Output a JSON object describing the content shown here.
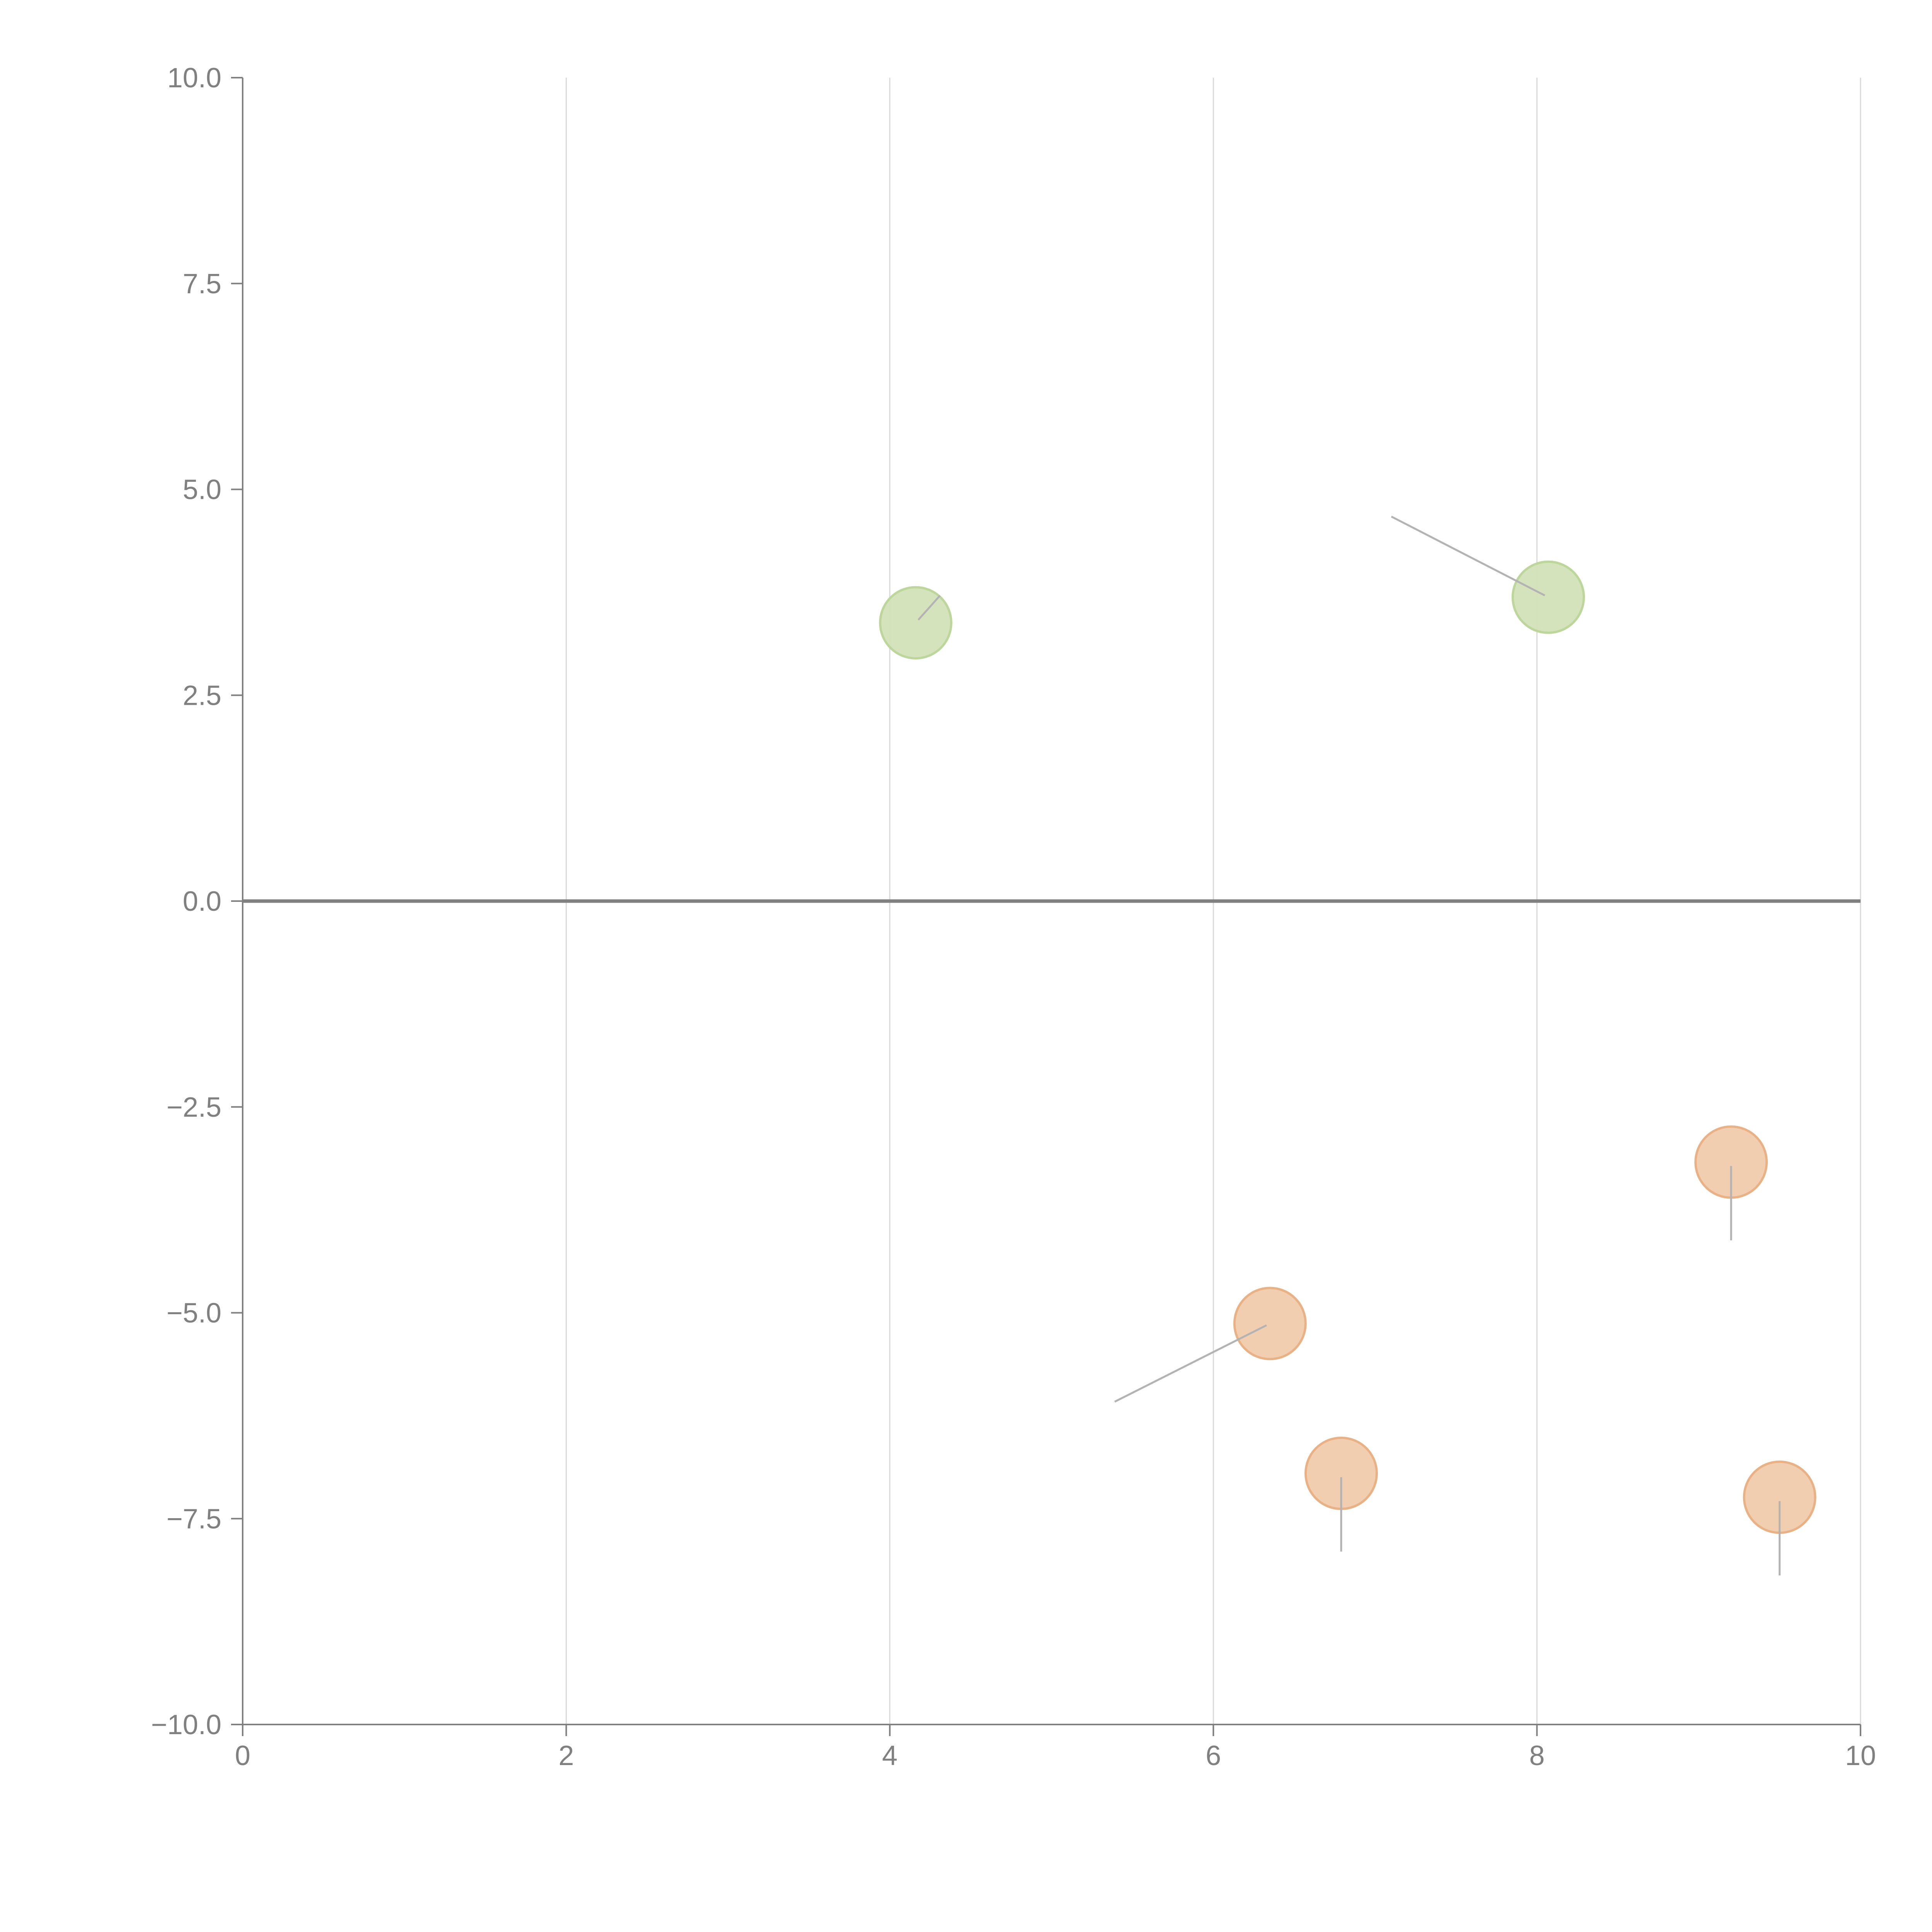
{
  "chart_data": {
    "type": "scatter",
    "title": "",
    "xlabel": "",
    "ylabel": "",
    "xlim": [
      0,
      10
    ],
    "ylim": [
      -10,
      10
    ],
    "x_ticks": [
      0,
      2,
      4,
      6,
      8,
      10
    ],
    "x_tick_labels": [
      "0",
      "2",
      "4",
      "6",
      "8",
      "10"
    ],
    "y_ticks": [
      10,
      7.5,
      5,
      2.5,
      0,
      -2.5,
      -5,
      -7.5,
      -10
    ],
    "y_tick_labels": [
      "10.0",
      "7.5",
      "5.0",
      "2.5",
      "0.0",
      "−2.5",
      "−5.0",
      "−7.5",
      "−10.0"
    ],
    "vertical_grid": true,
    "zero_line": true,
    "colors": {
      "positive_fill": "#d3e2b8",
      "positive_stroke": "#bcd69b",
      "negative_fill": "#f0cbac",
      "negative_stroke": "#e9b286",
      "leader": "#b3b3b3"
    },
    "points": [
      {
        "x": 4.16,
        "y": 3.38,
        "sign": "positive",
        "leader_to": [
          4.31,
          3.71
        ]
      },
      {
        "x": 8.07,
        "y": 3.69,
        "sign": "positive",
        "leader_to": [
          7.1,
          4.67
        ]
      },
      {
        "x": 9.2,
        "y": -3.17,
        "sign": "negative",
        "leader_to": [
          9.2,
          -4.12
        ]
      },
      {
        "x": 6.35,
        "y": -5.13,
        "sign": "negative",
        "leader_to": [
          5.39,
          -6.08
        ]
      },
      {
        "x": 6.79,
        "y": -6.95,
        "sign": "negative",
        "leader_to": [
          6.79,
          -7.9
        ]
      },
      {
        "x": 9.5,
        "y": -7.24,
        "sign": "negative",
        "leader_to": [
          9.5,
          -8.19
        ]
      }
    ]
  }
}
